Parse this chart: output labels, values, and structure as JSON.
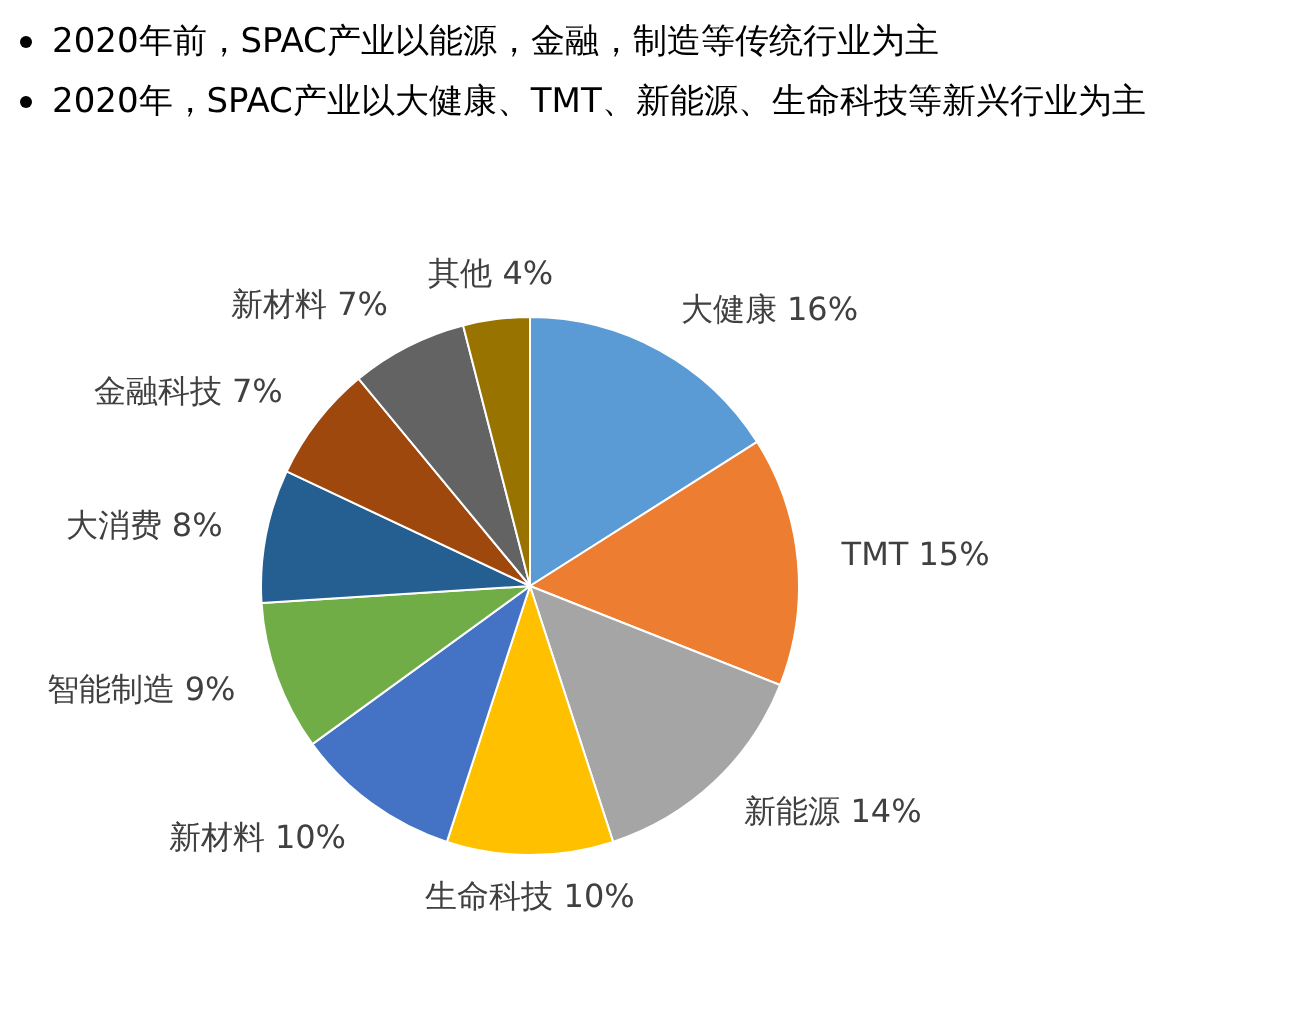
{
  "chart_data": {
    "type": "pie",
    "title": "2020年前，SPAC产业以能源，金融，制造等传统行业为主",
    "subtitle": "2020年，SPAC产业以大健康、TMT、新能源、生命科技等新兴行业为主",
    "categories": [
      "大健康",
      "TMT",
      "新能源",
      "生命科技",
      "新材料",
      "智能制造",
      "大消费",
      "金融科技",
      "新材料",
      "其他"
    ],
    "values": [
      16,
      15,
      14,
      10,
      10,
      9,
      8,
      7,
      7,
      4
    ],
    "value_labels": [
      "16%",
      "15%",
      "14%",
      "10%",
      "10%",
      "9%",
      "8%",
      "7%",
      "7%",
      "4%"
    ],
    "colors": [
      "#5b9bd5",
      "#ed7d31",
      "#a5a5a5",
      "#ffc000",
      "#4472c4",
      "#70ad47",
      "#255e91",
      "#9e480e",
      "#636363",
      "#997300"
    ],
    "legend": false
  }
}
